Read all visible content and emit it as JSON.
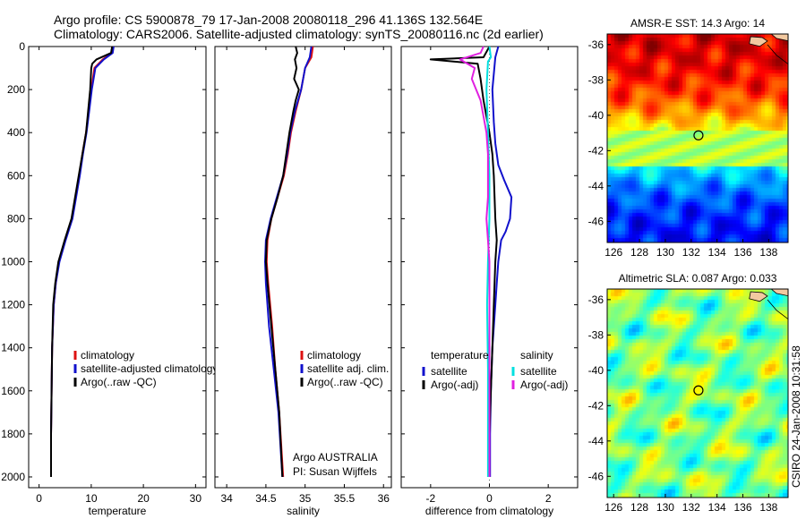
{
  "header": {
    "line1": "Argo profile: CS 5900878_79 17-Jan-2008 20080118_296 41.136S 132.564E",
    "line2": "Climatology: CARS2006. Satellite-adjusted climatology: synTS_20080116.nc (2d earlier)"
  },
  "credit": {
    "agency": "Argo AUSTRALIA",
    "pi": "PI: Susan Wijffels",
    "stamp": "CSIRO 24-Jan-2008 10:31:58"
  },
  "colors": {
    "climatology": "#dd1111",
    "satellite": "#1111cc",
    "argo": "#000000",
    "satellite_salinity": "#00e0e0",
    "argo_salinity": "#e020e0",
    "float_marker": "#000000"
  },
  "chart_data": [
    {
      "id": "temperature",
      "type": "line",
      "xlabel": "temperature",
      "ylabel": "",
      "xlim": [
        -2,
        32
      ],
      "ylim": [
        2050,
        0
      ],
      "xticks": [
        0,
        10,
        20,
        30
      ],
      "yticks": [
        0,
        200,
        400,
        600,
        800,
        1000,
        1200,
        1400,
        1600,
        1800,
        2000
      ],
      "legend": [
        "climatology",
        "satellite-adjusted climatology",
        "Argo(..raw -QC)"
      ],
      "series": [
        {
          "name": "climatology",
          "color": "#dd1111",
          "x": [
            14.0,
            13.9,
            12.2,
            10.6,
            10.0,
            9.5,
            9.0,
            8.3,
            7.7,
            6.3,
            5.0,
            3.8,
            3.2,
            2.8,
            2.5,
            2.4,
            2.3,
            2.3
          ],
          "y": [
            0,
            30,
            60,
            100,
            200,
            300,
            400,
            500,
            600,
            800,
            900,
            1000,
            1100,
            1200,
            1400,
            1600,
            1800,
            2000
          ]
        },
        {
          "name": "satellite-adjusted climatology",
          "color": "#1111cc",
          "x": [
            14.3,
            14.1,
            12.4,
            10.8,
            10.1,
            9.6,
            9.1,
            8.4,
            7.8,
            6.4,
            5.1,
            3.9,
            3.2,
            2.8,
            2.5,
            2.4,
            2.3,
            2.3
          ],
          "y": [
            0,
            30,
            60,
            100,
            200,
            300,
            400,
            500,
            600,
            800,
            900,
            1000,
            1100,
            1200,
            1400,
            1600,
            1800,
            2000
          ]
        },
        {
          "name": "Argo(..raw -QC)",
          "color": "#000000",
          "x": [
            14.0,
            13.8,
            11.0,
            10.2,
            10.0,
            9.8,
            9.4,
            9.0,
            8.3,
            7.6,
            6.2,
            4.9,
            3.7,
            3.1,
            2.7,
            2.5,
            2.4,
            2.3,
            2.3
          ],
          "y": [
            0,
            30,
            60,
            80,
            100,
            200,
            300,
            400,
            500,
            600,
            800,
            900,
            1000,
            1100,
            1200,
            1400,
            1600,
            1800,
            2000
          ]
        }
      ]
    },
    {
      "id": "salinity",
      "type": "line",
      "xlabel": "salinity",
      "ylabel": "",
      "xlim": [
        33.85,
        36.1
      ],
      "ylim": [
        2050,
        0
      ],
      "xticks": [
        34,
        34.5,
        35,
        35.5,
        36
      ],
      "xticklabels": [
        "34",
        "34.5",
        "35",
        "35.5",
        "36"
      ],
      "legend": [
        "climatology",
        "satellite adj. clim.",
        "Argo(..raw -QC)"
      ],
      "series": [
        {
          "name": "climatology",
          "color": "#dd1111",
          "x": [
            35.1,
            35.08,
            35.0,
            34.95,
            34.88,
            34.82,
            34.78,
            34.73,
            34.65,
            34.57,
            34.52,
            34.51,
            34.53,
            34.58,
            34.62,
            34.67,
            34.72
          ],
          "y": [
            0,
            50,
            100,
            200,
            300,
            400,
            500,
            600,
            700,
            800,
            900,
            1000,
            1100,
            1300,
            1500,
            1700,
            2000
          ]
        },
        {
          "name": "satellite adj. clim.",
          "color": "#1111cc",
          "x": [
            35.08,
            35.06,
            35.0,
            34.95,
            34.87,
            34.81,
            34.77,
            34.72,
            34.64,
            34.56,
            34.5,
            34.49,
            34.5,
            34.54,
            34.6,
            34.66,
            34.71
          ],
          "y": [
            0,
            50,
            100,
            200,
            300,
            400,
            500,
            600,
            700,
            800,
            900,
            1000,
            1100,
            1300,
            1500,
            1700,
            2000
          ]
        },
        {
          "name": "Argo(..raw -QC)",
          "color": "#000000",
          "x": [
            34.88,
            34.9,
            34.87,
            34.89,
            34.86,
            34.92,
            34.88,
            34.85,
            34.8,
            34.76,
            34.72,
            34.65,
            34.57,
            34.51,
            34.5,
            34.52,
            34.57,
            34.62,
            34.67,
            34.71
          ],
          "y": [
            0,
            30,
            60,
            100,
            150,
            200,
            250,
            300,
            400,
            500,
            600,
            700,
            800,
            900,
            1000,
            1100,
            1300,
            1500,
            1700,
            2000
          ]
        }
      ]
    },
    {
      "id": "difference",
      "type": "line",
      "xlabel": "difference from climatology",
      "ylabel": "",
      "xlim": [
        -3,
        3
      ],
      "ylim": [
        2050,
        0
      ],
      "xticks": [
        -2,
        0,
        2
      ],
      "legend_groups": [
        {
          "title": "temperature",
          "entries": [
            "satellite",
            "Argo(-adj)"
          ]
        },
        {
          "title": "salinity",
          "entries": [
            "satellite",
            "Argo(-adj)"
          ]
        }
      ],
      "series": [
        {
          "name": "temperature satellite",
          "color": "#1111cc",
          "x": [
            0.3,
            0.2,
            0.1,
            0.15,
            0.2,
            0.3,
            0.5,
            0.75,
            0.7,
            0.55,
            0.4,
            0.3,
            0.25,
            0.2,
            0.1,
            0.05,
            0.02,
            0.02
          ],
          "y": [
            0,
            50,
            200,
            350,
            450,
            550,
            620,
            700,
            800,
            860,
            900,
            1000,
            1100,
            1200,
            1400,
            1600,
            1800,
            2000
          ]
        },
        {
          "name": "temperature Argo(-adj)",
          "color": "#000000",
          "x": [
            0.0,
            -0.2,
            -2.0,
            -0.4,
            -0.3,
            -0.2,
            0.0,
            0.1,
            0.15,
            0.2,
            0.25,
            0.2,
            0.15,
            0.1,
            0.05,
            0.0,
            0.0
          ],
          "y": [
            0,
            50,
            60,
            80,
            150,
            250,
            400,
            500,
            600,
            800,
            900,
            1000,
            1200,
            1400,
            1600,
            1800,
            2000
          ]
        },
        {
          "name": "salinity satellite",
          "color": "#00e0e0",
          "x": [
            0.0,
            0.05,
            -0.05,
            -0.1,
            -0.05,
            0.0,
            0.0,
            -0.05,
            -0.08,
            -0.05,
            -0.05,
            -0.05
          ],
          "y": [
            0,
            50,
            70,
            200,
            400,
            600,
            800,
            1000,
            1200,
            1500,
            1800,
            2000
          ]
        },
        {
          "name": "salinity Argo(-adj)",
          "color": "#e020e0",
          "x": [
            -0.2,
            -0.3,
            -1.0,
            -0.5,
            -0.6,
            -0.3,
            -0.1,
            -0.05,
            -0.05,
            -0.1,
            -0.05,
            0.0,
            0.0,
            0.0
          ],
          "y": [
            0,
            30,
            60,
            100,
            150,
            250,
            400,
            500,
            700,
            800,
            900,
            1000,
            1200,
            2000
          ]
        }
      ]
    },
    {
      "id": "sst_map",
      "type": "heatmap",
      "title": "AMSR-E SST: 14.3 Argo: 14",
      "xlim": [
        125.5,
        139.5
      ],
      "ylim": [
        -47.2,
        -35.4
      ],
      "xticks": [
        126,
        128,
        130,
        132,
        134,
        136,
        138
      ],
      "yticks": [
        -36,
        -38,
        -40,
        -42,
        -44,
        -46
      ],
      "float_position": {
        "lon": 132.564,
        "lat": -41.136
      }
    },
    {
      "id": "sla_map",
      "type": "heatmap",
      "title": "Altimetric SLA: 0.087 Argo: 0.033",
      "xlim": [
        125.5,
        139.5
      ],
      "ylim": [
        -47.2,
        -35.4
      ],
      "xticks": [
        126,
        128,
        130,
        132,
        134,
        136,
        138
      ],
      "yticks": [
        -36,
        -38,
        -40,
        -42,
        -44,
        -46
      ],
      "float_position": {
        "lon": 132.564,
        "lat": -41.136
      }
    }
  ]
}
